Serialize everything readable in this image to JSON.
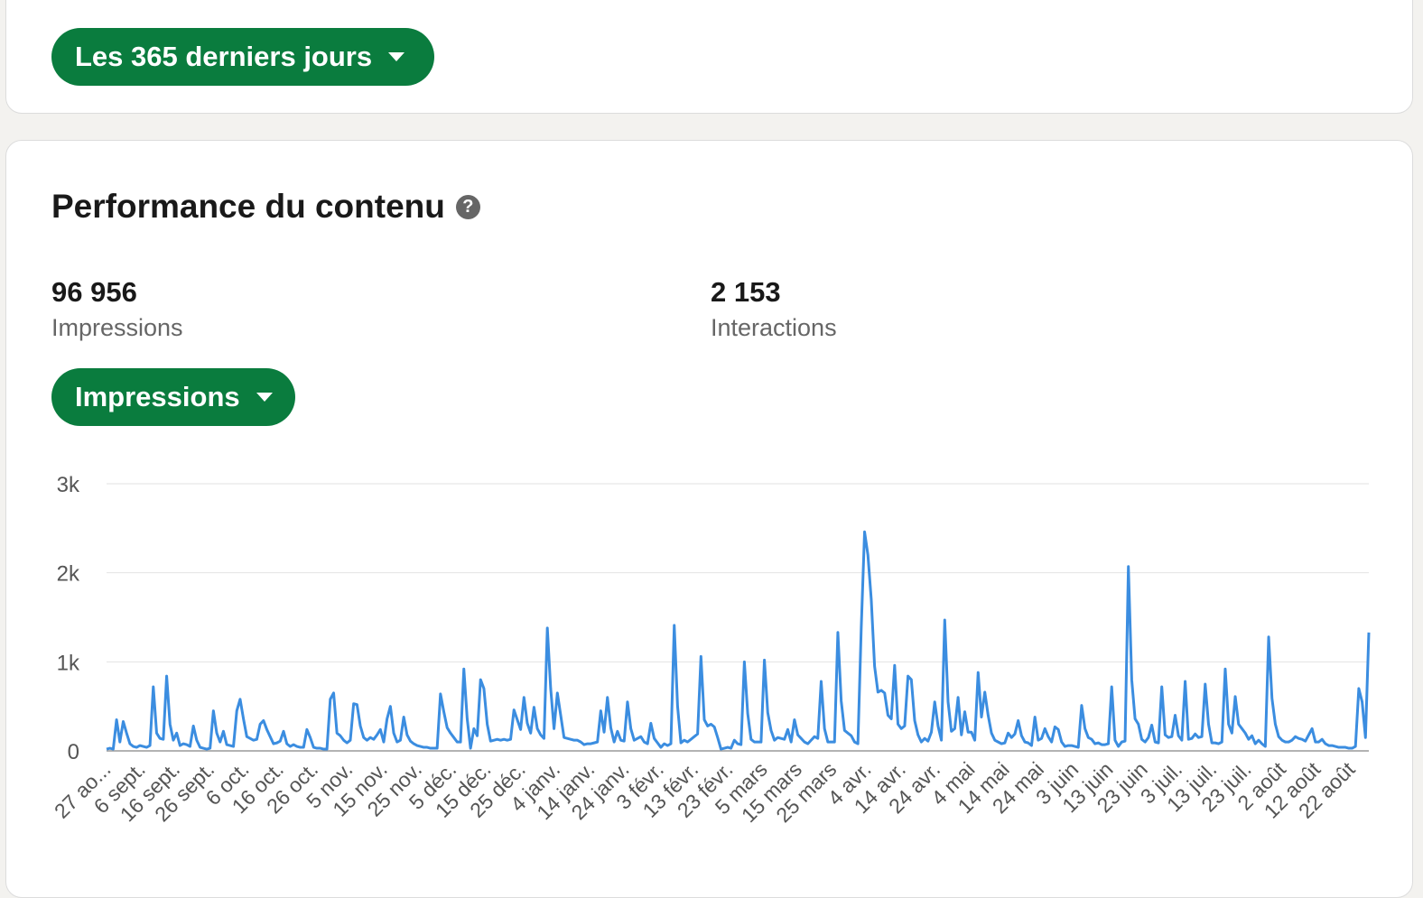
{
  "filter": {
    "range_label": "Les 365 derniers jours"
  },
  "section": {
    "title": "Performance du contenu",
    "help_icon": "?"
  },
  "stats": {
    "impressions_value": "96 956",
    "impressions_label": "Impressions",
    "interactions_value": "2 153",
    "interactions_label": "Interactions"
  },
  "metric_selector": {
    "label": "Impressions"
  },
  "colors": {
    "accent": "#0a7c3e",
    "line": "#3b8de0",
    "grid": "#e2e2e2"
  },
  "chart_data": {
    "type": "line",
    "ylim": [
      0,
      3000
    ],
    "y_ticks": [
      0,
      1000,
      2000,
      3000
    ],
    "y_tick_labels": [
      "0",
      "1k",
      "2k",
      "3k"
    ],
    "grid": true,
    "x_labels": [
      "27 ao...",
      "6 sept.",
      "16 sept.",
      "26 sept.",
      "6 oct.",
      "16 oct.",
      "26 oct.",
      "5 nov.",
      "15 nov.",
      "25 nov.",
      "5 déc.",
      "15 déc.",
      "25 déc.",
      "4 janv.",
      "14 janv.",
      "24 janv.",
      "3 févr.",
      "13 févr.",
      "23 févr.",
      "5 mars",
      "15 mars",
      "25 mars",
      "4 avr.",
      "14 avr.",
      "24 avr.",
      "4 mai",
      "14 mai",
      "24 mai",
      "3 juin",
      "13 juin",
      "23 juin",
      "3 juil.",
      "13 juil.",
      "23 juil.",
      "2 août",
      "12 août",
      "22 août"
    ],
    "series": [
      {
        "values": [
          20,
          30,
          20,
          350,
          100,
          330,
          200,
          80,
          50,
          40,
          60,
          50,
          40,
          60,
          720,
          200,
          140,
          130,
          840,
          300,
          120,
          200,
          60,
          80,
          70,
          50,
          280,
          120,
          40,
          30,
          20,
          30,
          450,
          200,
          100,
          220,
          70,
          60,
          50,
          450,
          580,
          360,
          160,
          140,
          120,
          130,
          300,
          340,
          240,
          160,
          80,
          90,
          110,
          220,
          80,
          50,
          70,
          50,
          40,
          40,
          240,
          150,
          40,
          30,
          30,
          20,
          20,
          580,
          650,
          200,
          170,
          120,
          90,
          120,
          530,
          520,
          280,
          150,
          120,
          150,
          130,
          180,
          240,
          100,
          360,
          500,
          200,
          100,
          120,
          380,
          180,
          110,
          80,
          60,
          50,
          40,
          40,
          30,
          30,
          30,
          640,
          440,
          260,
          200,
          150,
          100,
          100,
          920,
          360,
          30,
          250,
          170,
          800,
          700,
          300,
          110,
          120,
          130,
          120,
          130,
          120,
          130,
          460,
          350,
          240,
          600,
          310,
          200,
          490,
          250,
          180,
          140,
          1380,
          700,
          250,
          650,
          400,
          150,
          140,
          130,
          120,
          120,
          100,
          70,
          80,
          80,
          90,
          100,
          450,
          210,
          600,
          260,
          100,
          220,
          120,
          110,
          550,
          250,
          120,
          140,
          160,
          100,
          80,
          310,
          140,
          90,
          40,
          80,
          60,
          80,
          1410,
          500,
          90,
          120,
          100,
          130,
          160,
          190,
          1060,
          350,
          280,
          300,
          270,
          150,
          20,
          30,
          40,
          30,
          120,
          80,
          70,
          1000,
          420,
          130,
          100,
          100,
          100,
          1020,
          430,
          230,
          120,
          150,
          140,
          130,
          240,
          100,
          350,
          180,
          140,
          100,
          80,
          120,
          160,
          140,
          780,
          250,
          100,
          100,
          100,
          1330,
          560,
          230,
          200,
          170,
          100,
          80,
          1380,
          2460,
          2200,
          1700,
          950,
          660,
          680,
          650,
          400,
          360,
          960,
          300,
          250,
          280,
          840,
          800,
          340,
          180,
          100,
          140,
          110,
          210,
          550,
          280,
          120,
          1470,
          550,
          220,
          250,
          600,
          180,
          440,
          210,
          210,
          120,
          880,
          380,
          660,
          400,
          200,
          120,
          100,
          80,
          90,
          200,
          150,
          190,
          340,
          170,
          100,
          90,
          60,
          380,
          120,
          140,
          250,
          160,
          100,
          270,
          240,
          100,
          50,
          60,
          60,
          50,
          40,
          510,
          250,
          150,
          130,
          80,
          90,
          70,
          70,
          80,
          720,
          120,
          50,
          100,
          110,
          2070,
          800,
          360,
          300,
          130,
          100,
          150,
          290,
          100,
          90,
          720,
          180,
          150,
          160,
          400,
          170,
          120,
          780,
          130,
          140,
          190,
          150,
          160,
          750,
          300,
          90,
          90,
          80,
          100,
          920,
          300,
          200,
          610,
          300,
          250,
          200,
          130,
          170,
          80,
          120,
          80,
          50,
          1280,
          590,
          300,
          160,
          120,
          100,
          100,
          120,
          160,
          140,
          130,
          110,
          180,
          250,
          100,
          100,
          130,
          80,
          60,
          60,
          50,
          40,
          40,
          40,
          30,
          30,
          50,
          700,
          550,
          150,
          1330
        ]
      }
    ]
  }
}
